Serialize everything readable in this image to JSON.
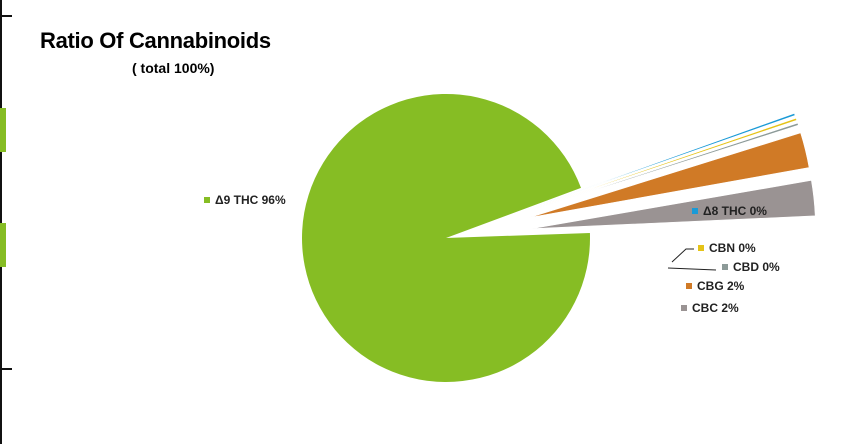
{
  "chart_data": {
    "type": "pie",
    "title": "Ratio Of Cannabinoids",
    "subtitle": "( total 100%)",
    "slices": [
      {
        "name": "Δ9 THC",
        "value": 96,
        "label": "Δ9 THC 96%",
        "color": "#86bd24"
      },
      {
        "name": "Δ8 THC",
        "value": 0,
        "label": "Δ8 THC 0%",
        "color": "#1a9ad6"
      },
      {
        "name": "CBN",
        "value": 0,
        "label": "CBN 0%",
        "color": "#e5c317"
      },
      {
        "name": "CBD",
        "value": 0,
        "label": "CBD 0%",
        "color": "#8c9a98"
      },
      {
        "name": "CBG",
        "value": 2,
        "label": "CBG 2%",
        "color": "#d07a26"
      },
      {
        "name": "CBC",
        "value": 2,
        "label": "CBC 2%",
        "color": "#9a9393"
      }
    ]
  }
}
